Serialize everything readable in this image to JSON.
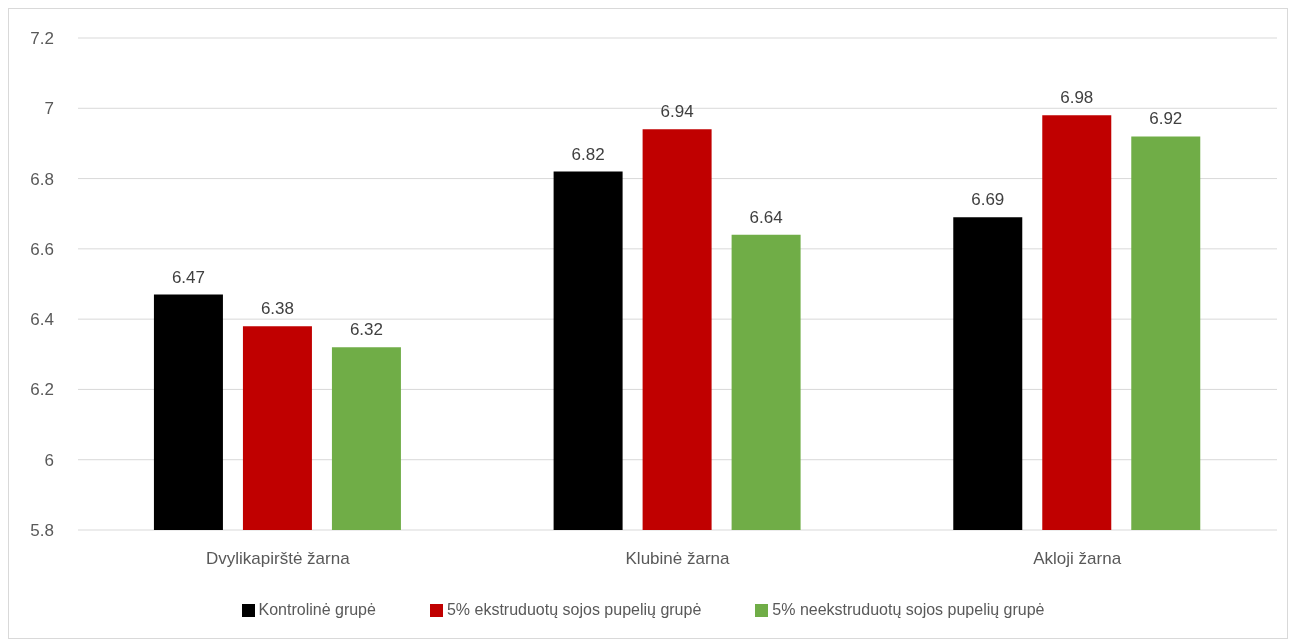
{
  "chart_data": {
    "type": "bar",
    "categories": [
      "Dvylikapirštė žarna",
      "Klubinė žarna",
      "Akloji žarna"
    ],
    "series": [
      {
        "name": "Kontrolinė grupė",
        "color": "#000000",
        "values": [
          6.47,
          6.82,
          6.69
        ]
      },
      {
        "name": "5% ekstruduotų sojos pupelių grupė",
        "color": "#c00000",
        "values": [
          6.38,
          6.94,
          6.98
        ]
      },
      {
        "name": "5% neekstruduotų sojos pupelių grupė",
        "color": "#70ad47",
        "values": [
          6.32,
          6.64,
          6.92
        ]
      }
    ],
    "ylim": [
      5.8,
      7.2
    ],
    "yticks": [
      5.8,
      6,
      6.2,
      6.4,
      6.6,
      6.8,
      7,
      7.2
    ],
    "grid": "y",
    "legend": "bottom",
    "data_labels": true
  }
}
